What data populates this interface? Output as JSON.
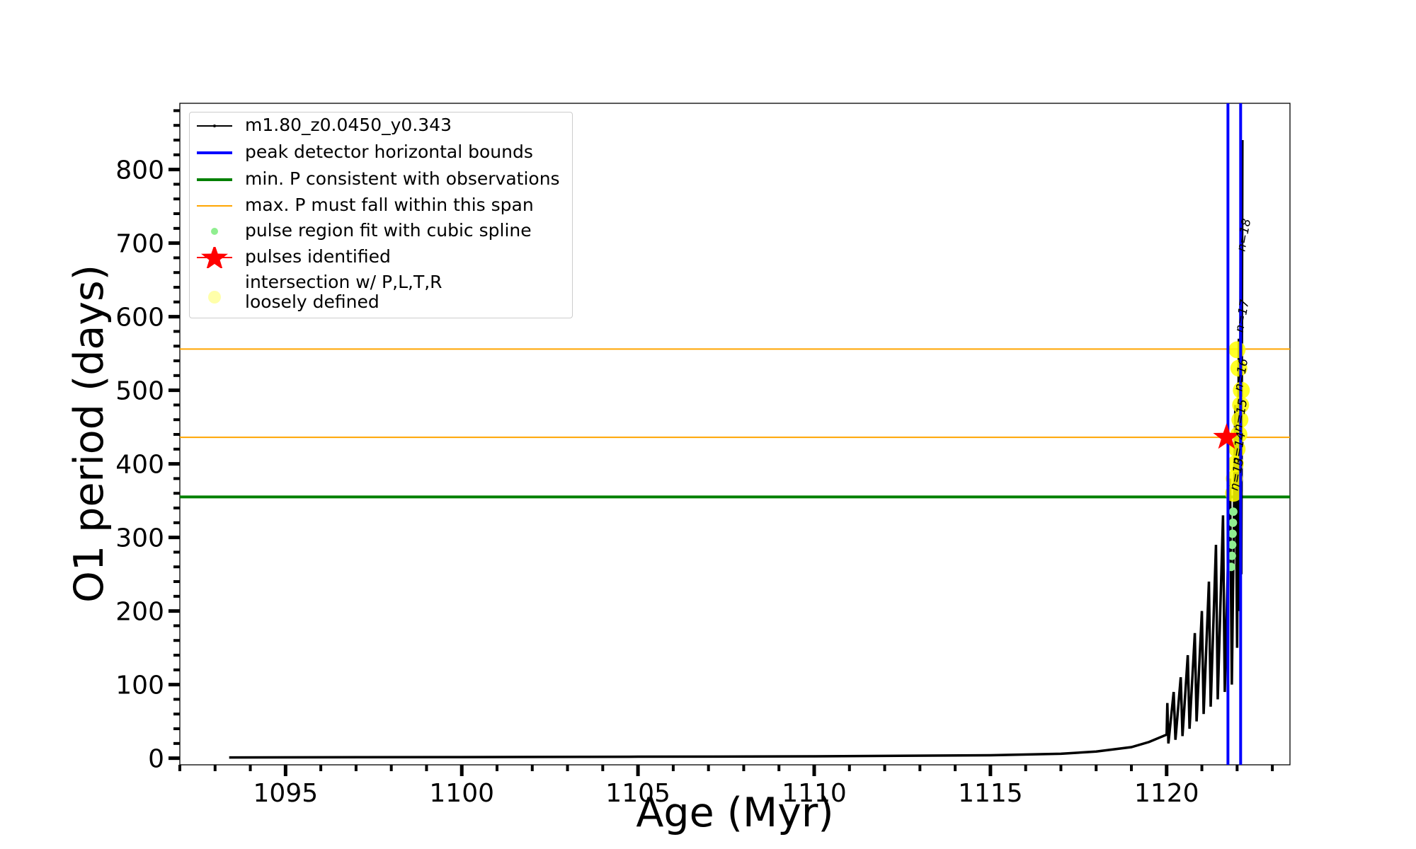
{
  "chart_data": {
    "type": "line",
    "xlabel": "Age (Myr)",
    "ylabel": "O1 period (days)",
    "xlim": [
      1092,
      1123.5
    ],
    "ylim": [
      -9,
      890
    ],
    "xticks": [
      1095,
      1100,
      1105,
      1110,
      1115,
      1120
    ],
    "yticks": [
      0,
      100,
      200,
      300,
      400,
      500,
      600,
      700,
      800
    ],
    "xticks_minor": [
      1092,
      1093,
      1094,
      1096,
      1097,
      1098,
      1099,
      1101,
      1102,
      1103,
      1104,
      1106,
      1107,
      1108,
      1109,
      1111,
      1112,
      1113,
      1114,
      1116,
      1117,
      1118,
      1119,
      1121,
      1122,
      1123
    ],
    "yticks_minor": [
      20,
      40,
      60,
      80,
      120,
      140,
      160,
      180,
      220,
      240,
      260,
      280,
      320,
      340,
      360,
      380,
      420,
      440,
      460,
      480,
      520,
      540,
      560,
      580,
      620,
      640,
      660,
      680,
      720,
      740,
      760,
      780,
      820,
      840,
      860,
      880
    ],
    "legend": "upper left",
    "series": [
      {
        "name": "m1.80_z0.0450_y0.343",
        "kind": "line",
        "color": "#000000",
        "x": [
          1093.4,
          1100,
          1105,
          1110,
          1115,
          1117,
          1118,
          1119,
          1119.5,
          1120,
          1120.02,
          1120.05,
          1120.2,
          1120.25,
          1120.4,
          1120.45,
          1120.6,
          1120.65,
          1120.8,
          1120.85,
          1121.0,
          1121.05,
          1121.2,
          1121.25,
          1121.4,
          1121.45,
          1121.6,
          1121.65,
          1121.8,
          1121.85,
          1121.95,
          1122.0,
          1122.05,
          1122.07,
          1122.1,
          1122.12,
          1122.15
        ],
        "values": [
          1,
          1.5,
          2,
          2.5,
          4,
          6,
          9,
          15,
          22,
          32,
          75,
          20,
          90,
          25,
          110,
          30,
          140,
          40,
          170,
          50,
          200,
          60,
          240,
          70,
          290,
          80,
          330,
          90,
          380,
          100,
          480,
          150,
          570,
          200,
          690,
          250,
          840
        ]
      },
      {
        "name": "peak detector horizontal bounds",
        "kind": "vline",
        "color": "#0000ff",
        "x": [
          1121.74,
          1122.1
        ]
      },
      {
        "name": "min. P consistent with observations",
        "kind": "hline",
        "color": "#008000",
        "values": [
          355
        ]
      },
      {
        "name": "max. P must fall within this span",
        "kind": "hline",
        "color": "#ffa500",
        "values": [
          556,
          436
        ]
      },
      {
        "name": "pulse region fit with cubic spline",
        "kind": "dots",
        "color": "#90ee90",
        "x": [
          1121.83,
          1121.85,
          1121.86,
          1121.87,
          1121.88,
          1121.89
        ],
        "values": [
          260,
          275,
          290,
          305,
          320,
          335
        ]
      },
      {
        "name": "pulses identified",
        "kind": "star",
        "color": "#ff0000",
        "x": [
          1121.7
        ],
        "values": [
          436
        ]
      },
      {
        "name": "intersection w/ P,L,T,R\nloosely defined",
        "kind": "blob",
        "color": "#ffff00",
        "x": [
          1121.9,
          1121.92,
          1121.95,
          1122.0,
          1122.05,
          1122.08,
          1122.1,
          1122.12,
          1122.05,
          1122.0
        ],
        "values": [
          360,
          380,
          400,
          420,
          440,
          460,
          480,
          500,
          530,
          555
        ]
      }
    ],
    "annotations": [
      {
        "text": "n=18",
        "x": 1122.3,
        "y": 710
      },
      {
        "text": "n=17",
        "x": 1122.25,
        "y": 600
      },
      {
        "text": "n=16",
        "x": 1122.22,
        "y": 520
      },
      {
        "text": "n=15",
        "x": 1122.2,
        "y": 465
      },
      {
        "text": "n=14",
        "x": 1122.15,
        "y": 420
      },
      {
        "text": "n=13",
        "x": 1122.1,
        "y": 385
      }
    ]
  }
}
